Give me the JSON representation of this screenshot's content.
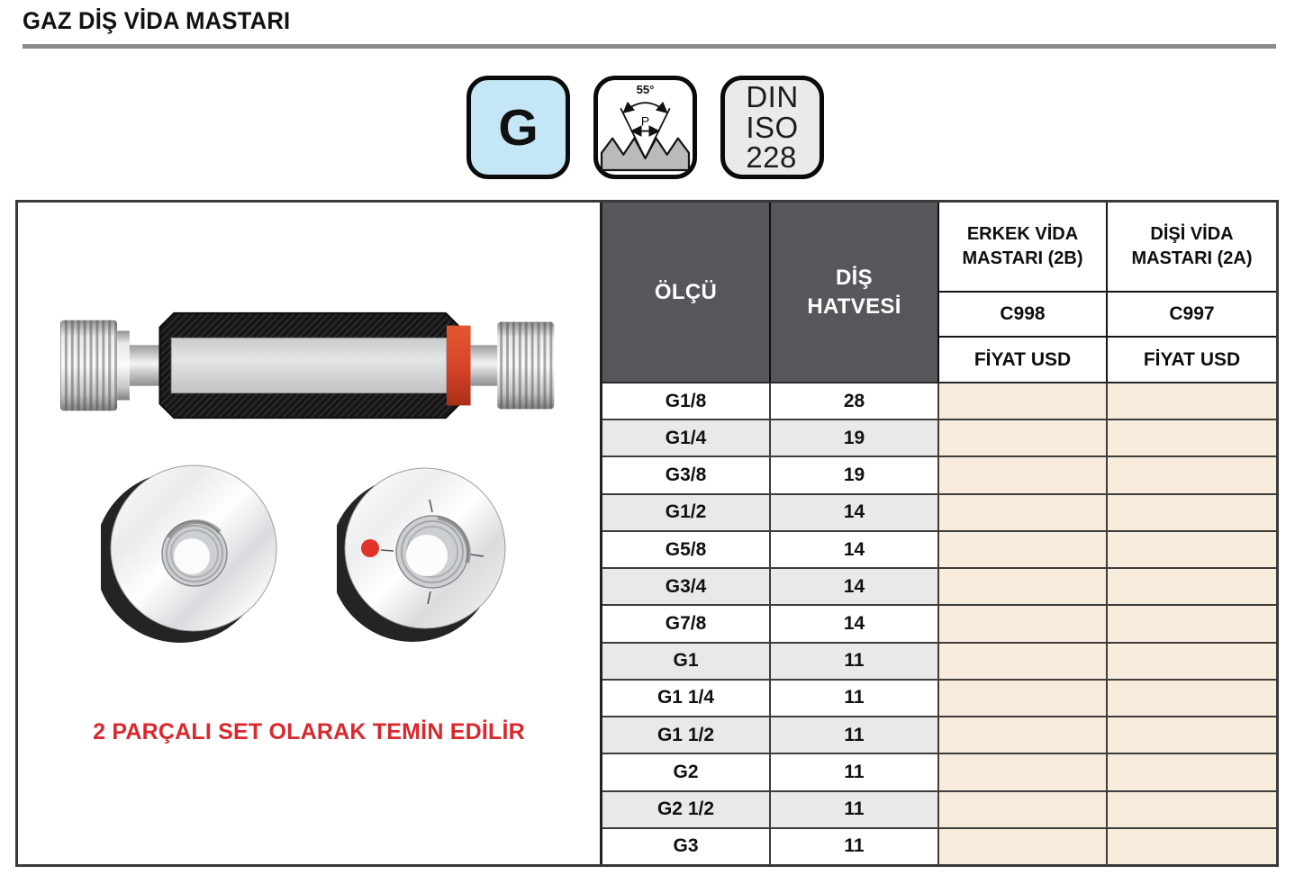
{
  "page": {
    "title": "GAZ DİŞ VİDA MASTARI"
  },
  "badges": {
    "thread_type": "G",
    "angle": "55°",
    "pitch_symbol": "P",
    "standard": [
      "DIN",
      "ISO",
      "228"
    ]
  },
  "left_panel": {
    "caption": "2 PARÇALI SET OLARAK TEMİN EDİLİR"
  },
  "table": {
    "headers": {
      "size": "ÖLÇÜ",
      "pitch": "DİŞ HATVESİ",
      "male_title": "ERKEK VİDA MASTARI (2B)",
      "male_code": "C998",
      "male_price_label": "FİYAT USD",
      "female_title": "DİŞİ VİDA MASTARI (2A)",
      "female_code": "C997",
      "female_price_label": "FİYAT USD"
    },
    "rows": [
      {
        "size": "G1/8",
        "pitch": "28",
        "male_price": "",
        "female_price": ""
      },
      {
        "size": "G1/4",
        "pitch": "19",
        "male_price": "",
        "female_price": ""
      },
      {
        "size": "G3/8",
        "pitch": "19",
        "male_price": "",
        "female_price": ""
      },
      {
        "size": "G1/2",
        "pitch": "14",
        "male_price": "",
        "female_price": ""
      },
      {
        "size": "G5/8",
        "pitch": "14",
        "male_price": "",
        "female_price": ""
      },
      {
        "size": "G3/4",
        "pitch": "14",
        "male_price": "",
        "female_price": ""
      },
      {
        "size": "G7/8",
        "pitch": "14",
        "male_price": "",
        "female_price": ""
      },
      {
        "size": "G1",
        "pitch": "11",
        "male_price": "",
        "female_price": ""
      },
      {
        "size": "G1 1/4",
        "pitch": "11",
        "male_price": "",
        "female_price": ""
      },
      {
        "size": "G1 1/2",
        "pitch": "11",
        "male_price": "",
        "female_price": ""
      },
      {
        "size": "G2",
        "pitch": "11",
        "male_price": "",
        "female_price": ""
      },
      {
        "size": "G2 1/2",
        "pitch": "11",
        "male_price": "",
        "female_price": ""
      },
      {
        "size": "G3",
        "pitch": "11",
        "male_price": "",
        "female_price": ""
      }
    ]
  },
  "colors": {
    "header_dark": "#56575b",
    "row_alt_gray": "#e9e9ea",
    "price_cream": "#f8ecdc",
    "accent_red": "#d9282e",
    "badge_blue": "#c5e6f6",
    "badge_gray": "#e9eaeb",
    "rule_gray": "#8c8c8c",
    "gauge_red_band": "#d8462a"
  }
}
